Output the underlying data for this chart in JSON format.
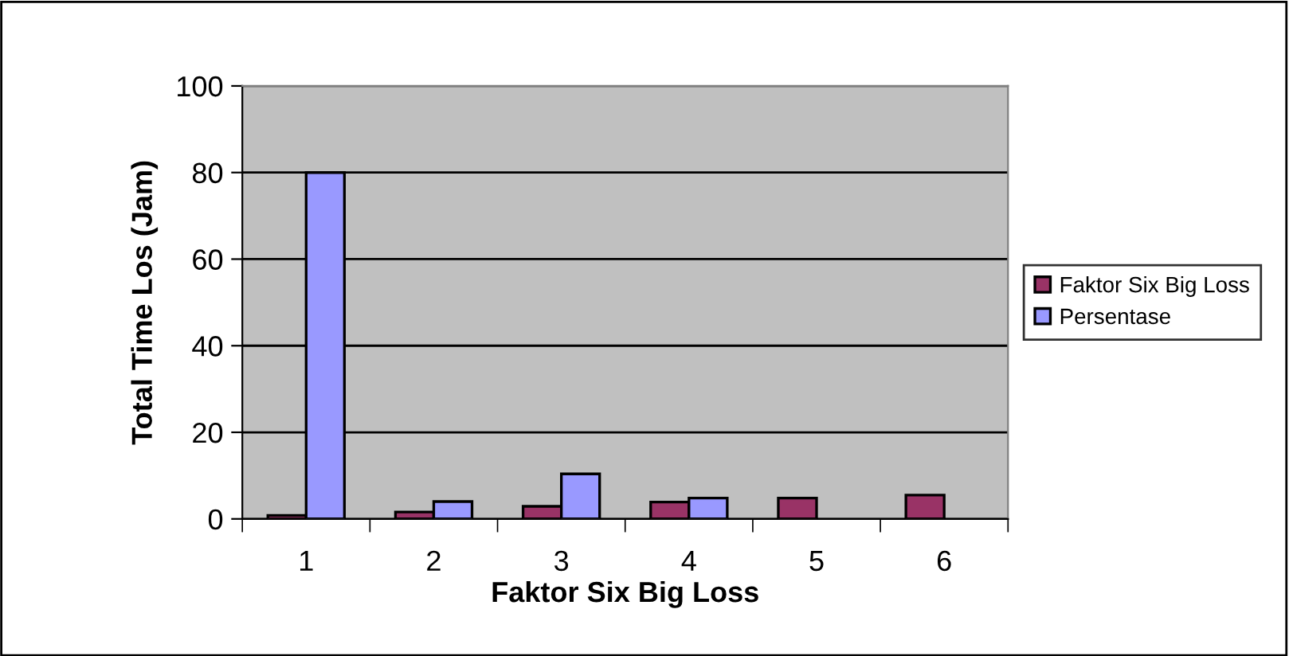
{
  "chart_data": {
    "type": "bar",
    "xlabel": "Faktor Six Big Loss",
    "ylabel": "Total Time Los (Jam)",
    "categories": [
      "1",
      "2",
      "3",
      "4",
      "5",
      "6"
    ],
    "series": [
      {
        "name": "Faktor Six Big Loss",
        "color": "#993366",
        "values": [
          0.8,
          1.6,
          2.9,
          3.9,
          4.8,
          5.5
        ]
      },
      {
        "name": "Persentase",
        "color": "#9999ff",
        "values": [
          80,
          4.0,
          10.4,
          4.8,
          null,
          null
        ]
      }
    ],
    "ylim": [
      0,
      100
    ],
    "yticks": [
      0,
      20,
      40,
      60,
      80,
      100
    ],
    "grid": "y",
    "legend": "right"
  }
}
